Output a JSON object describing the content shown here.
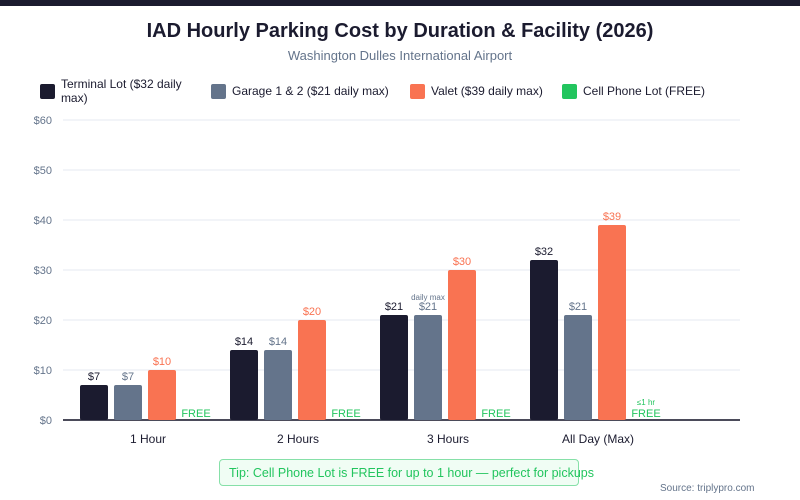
{
  "chart_data": {
    "type": "bar",
    "title": "IAD Hourly Parking Cost by Duration & Facility (2026)",
    "subtitle": "Washington Dulles International Airport",
    "categories": [
      "1 Hour",
      "2 Hours",
      "3 Hours",
      "All Day (Max)"
    ],
    "series": [
      {
        "name": "Terminal Lot ($32 daily max)",
        "color": "#1b1b2f",
        "values": [
          7,
          14,
          21,
          32
        ],
        "labels": [
          "$7",
          "$14",
          "$21",
          "$32"
        ]
      },
      {
        "name": "Garage 1 & 2 ($21 daily max)",
        "color": "#64748b",
        "values": [
          7,
          14,
          21,
          21
        ],
        "labels": [
          "$7",
          "$14",
          "$21",
          "$21"
        ]
      },
      {
        "name": "Valet ($39 daily max)",
        "color": "#f97352",
        "values": [
          10,
          20,
          30,
          39
        ],
        "labels": [
          "$10",
          "$20",
          "$30",
          "$39"
        ]
      },
      {
        "name": "Cell Phone Lot (FREE)",
        "color": "#22c55e",
        "values": [
          0,
          0,
          0,
          0
        ],
        "labels": [
          "FREE",
          "FREE",
          "FREE",
          "FREE"
        ]
      }
    ],
    "annotations": {
      "garage_3h": "daily max",
      "cell_allday": "≤1 hr"
    },
    "yticks": [
      "$0",
      "$10",
      "$20",
      "$30",
      "$40",
      "$50",
      "$60"
    ],
    "ylim": [
      0,
      60
    ],
    "grid": true,
    "legend": "top"
  },
  "tip": "Tip: Cell Phone Lot is FREE for up to 1 hour — perfect for pickups",
  "source": "Source: triplypro.com",
  "icons": {
    "tip": "lightbulb-icon"
  }
}
